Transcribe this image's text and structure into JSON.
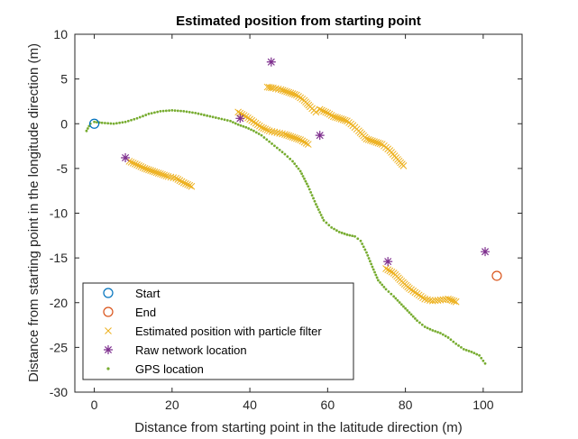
{
  "chart_data": {
    "type": "scatter",
    "title": "Estimated position from starting point",
    "xlabel": "Distance from starting point in the latitude direction (m)",
    "ylabel": "Distance from starting point in the longitude direction (m)",
    "xlim": [
      -5,
      110
    ],
    "ylim": [
      -30,
      10
    ],
    "xticks": [
      "0",
      "20",
      "40",
      "60",
      "80",
      "100"
    ],
    "yticks": [
      "10",
      "5",
      "0",
      "-5",
      "-10",
      "-15",
      "-20",
      "-25",
      "-30"
    ],
    "xtick_values": [
      0,
      20,
      40,
      60,
      80,
      100
    ],
    "ytick_values": [
      10,
      5,
      0,
      -5,
      -10,
      -15,
      -20,
      -25,
      -30
    ],
    "grid": false,
    "legend_position": "bottom-left",
    "colors": {
      "start": "#0072bd",
      "end": "#d95319",
      "particle": "#edb120",
      "raw": "#7e2f8e",
      "gps": "#77ac30"
    },
    "series": [
      {
        "name": "Start",
        "marker": "circle",
        "points": [
          [
            0,
            0
          ]
        ]
      },
      {
        "name": "End",
        "marker": "circle",
        "points": [
          [
            103.5,
            -17
          ]
        ]
      },
      {
        "name": "Estimated position with particle filter",
        "marker": "x",
        "segments": [
          [
            [
              9,
              -4.2
            ],
            [
              11,
              -4.6
            ],
            [
              13,
              -5.0
            ],
            [
              15,
              -5.3
            ],
            [
              17,
              -5.6
            ],
            [
              19,
              -5.9
            ],
            [
              21,
              -6.1
            ],
            [
              23,
              -6.6
            ],
            [
              25,
              -7.0
            ]
          ],
          [
            [
              37,
              1.3
            ],
            [
              39,
              0.8
            ],
            [
              41,
              0.2
            ],
            [
              43,
              -0.4
            ],
            [
              45,
              -0.8
            ],
            [
              47,
              -1.0
            ],
            [
              49,
              -1.2
            ],
            [
              51,
              -1.5
            ],
            [
              53,
              -1.8
            ],
            [
              55,
              -2.3
            ]
          ],
          [
            [
              44.5,
              4.1
            ],
            [
              46,
              4.0
            ],
            [
              48,
              3.8
            ],
            [
              50,
              3.5
            ],
            [
              52,
              3.2
            ],
            [
              54,
              2.6
            ],
            [
              55.5,
              1.9
            ],
            [
              57,
              1.3
            ]
          ],
          [
            [
              58,
              1.6
            ],
            [
              60,
              1.2
            ],
            [
              61.5,
              0.8
            ],
            [
              63,
              0.6
            ],
            [
              65,
              0.3
            ],
            [
              66.5,
              -0.2
            ],
            [
              68,
              -0.8
            ],
            [
              70,
              -1.7
            ],
            [
              72,
              -2.0
            ],
            [
              74,
              -2.3
            ],
            [
              76,
              -3.0
            ],
            [
              78,
              -4.0
            ],
            [
              79.5,
              -4.7
            ]
          ],
          [
            [
              75,
              -16.2
            ],
            [
              77,
              -16.7
            ],
            [
              79,
              -17.6
            ],
            [
              81,
              -18.4
            ],
            [
              83,
              -19.0
            ],
            [
              85,
              -19.6
            ],
            [
              87,
              -19.8
            ],
            [
              89,
              -19.7
            ],
            [
              91,
              -19.6
            ],
            [
              93,
              -19.9
            ]
          ]
        ]
      },
      {
        "name": "Raw network location",
        "marker": "asterisk",
        "points": [
          [
            8,
            -3.8
          ],
          [
            37.5,
            0.6
          ],
          [
            45.5,
            6.9
          ],
          [
            58,
            -1.3
          ],
          [
            75.5,
            -15.4
          ],
          [
            100.5,
            -14.3
          ]
        ]
      },
      {
        "name": "GPS location",
        "marker": "dot",
        "path": [
          [
            -2,
            -0.8
          ],
          [
            -1,
            0.0
          ],
          [
            0,
            0.2
          ],
          [
            2,
            0.1
          ],
          [
            5,
            0
          ],
          [
            8,
            0.2
          ],
          [
            11,
            0.6
          ],
          [
            14,
            1.1
          ],
          [
            17,
            1.4
          ],
          [
            20,
            1.5
          ],
          [
            23,
            1.4
          ],
          [
            26,
            1.2
          ],
          [
            29,
            0.9
          ],
          [
            32,
            0.6
          ],
          [
            35,
            0.3
          ],
          [
            37,
            -0.1
          ],
          [
            39,
            -0.4
          ],
          [
            41,
            -0.8
          ],
          [
            43,
            -1.3
          ],
          [
            45,
            -2.0
          ],
          [
            47,
            -2.7
          ],
          [
            49,
            -3.4
          ],
          [
            51,
            -4.2
          ],
          [
            53,
            -5.3
          ],
          [
            55,
            -7.0
          ],
          [
            57,
            -9.0
          ],
          [
            59,
            -10.8
          ],
          [
            61,
            -11.6
          ],
          [
            63,
            -12.1
          ],
          [
            65,
            -12.4
          ],
          [
            67,
            -12.6
          ],
          [
            68.5,
            -13.1
          ],
          [
            70,
            -14.4
          ],
          [
            71.5,
            -16.0
          ],
          [
            73,
            -17.5
          ],
          [
            75,
            -18.5
          ],
          [
            77,
            -19.3
          ],
          [
            79,
            -20.2
          ],
          [
            81,
            -21.1
          ],
          [
            83,
            -22.0
          ],
          [
            85,
            -22.7
          ],
          [
            87,
            -23.1
          ],
          [
            89,
            -23.4
          ],
          [
            91,
            -23.9
          ],
          [
            93,
            -24.6
          ],
          [
            95,
            -25.2
          ],
          [
            97,
            -25.5
          ],
          [
            99,
            -25.9
          ],
          [
            100.5,
            -26.8
          ]
        ]
      }
    ]
  }
}
